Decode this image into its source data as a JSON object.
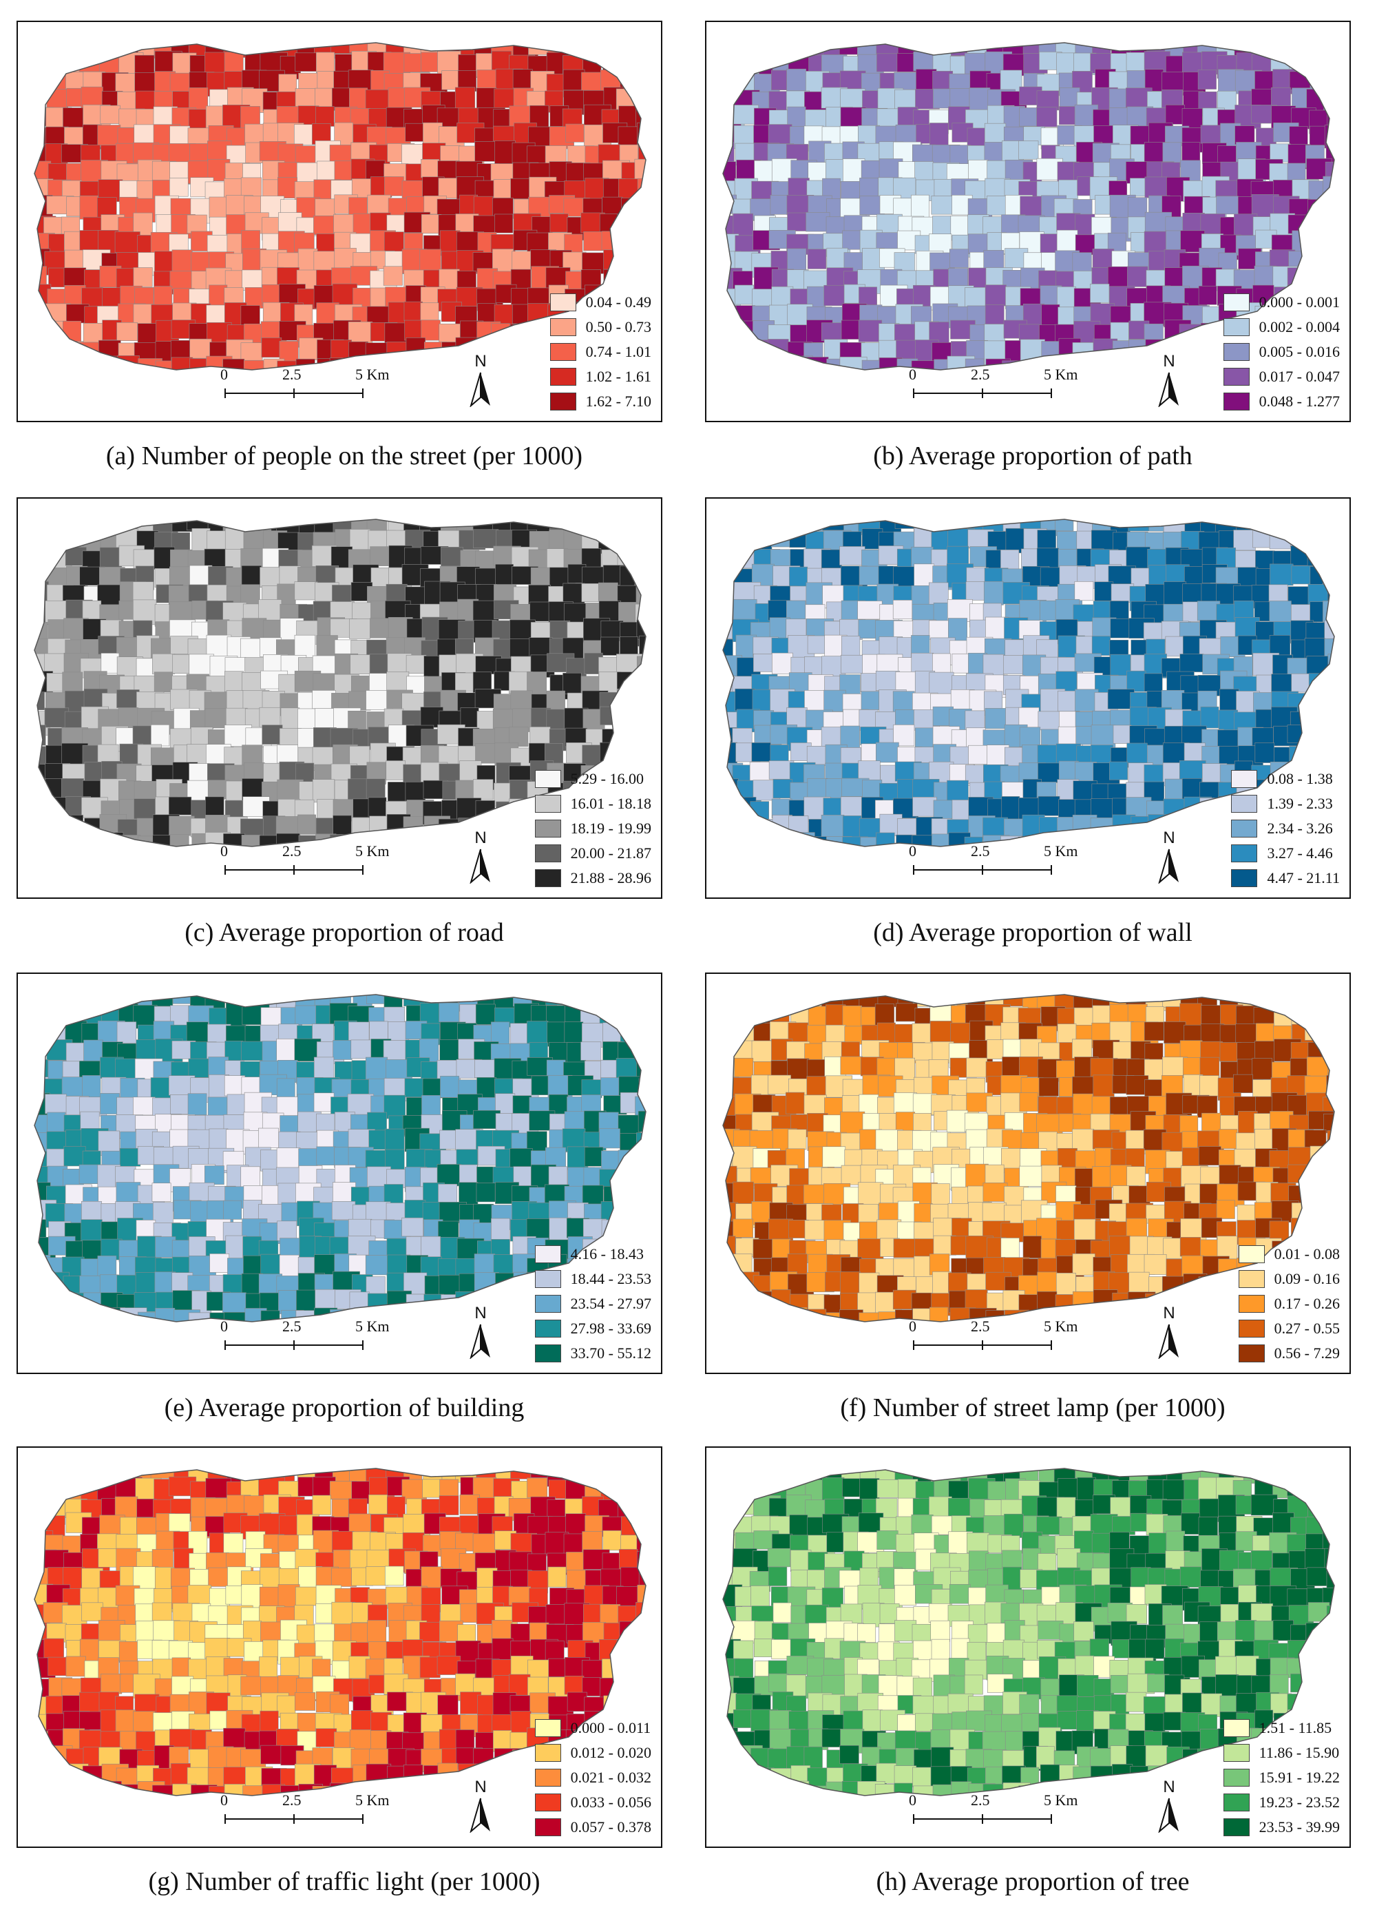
{
  "scale_bar": {
    "ticks": [
      "0",
      "2.5",
      "5 Km"
    ]
  },
  "north_arrow": {
    "label": "N",
    "icon": "north-arrow-icon"
  },
  "maps": [
    {
      "id": "a",
      "caption": "(a) Number of people on the street (per 1000)",
      "legend": [
        {
          "label": "0.04 - 0.49",
          "color": "#fde0d2"
        },
        {
          "label": "0.50 - 0.73",
          "color": "#fba487"
        },
        {
          "label": "0.74 - 1.01",
          "color": "#f4614a"
        },
        {
          "label": "1.02 - 1.61",
          "color": "#d62a22"
        },
        {
          "label": "1.62 - 7.10",
          "color": "#a50f15"
        }
      ]
    },
    {
      "id": "b",
      "caption": "(b) Average proportion of path",
      "legend": [
        {
          "label": "0.000 - 0.001",
          "color": "#edf8fb"
        },
        {
          "label": "0.002 - 0.004",
          "color": "#b3cde3"
        },
        {
          "label": "0.005 - 0.016",
          "color": "#8c96c6"
        },
        {
          "label": "0.017 - 0.047",
          "color": "#8856a7"
        },
        {
          "label": "0.048 - 1.277",
          "color": "#810f7c"
        }
      ]
    },
    {
      "id": "c",
      "caption": "(c) Average proportion of road",
      "legend": [
        {
          "label": "5.29 - 16.00",
          "color": "#f7f7f7"
        },
        {
          "label": "16.01 - 18.18",
          "color": "#cccccc"
        },
        {
          "label": "18.19 - 19.99",
          "color": "#969696"
        },
        {
          "label": "20.00 - 21.87",
          "color": "#636363"
        },
        {
          "label": "21.88 - 28.96",
          "color": "#252525"
        }
      ]
    },
    {
      "id": "d",
      "caption": "(d) Average proportion of wall",
      "legend": [
        {
          "label": "0.08 - 1.38",
          "color": "#f1eef6"
        },
        {
          "label": "1.39 - 2.33",
          "color": "#bdc9e1"
        },
        {
          "label": "2.34 - 3.26",
          "color": "#74a9cf"
        },
        {
          "label": "3.27 - 4.46",
          "color": "#2b8cbe"
        },
        {
          "label": "4.47 - 21.11",
          "color": "#045a8d"
        }
      ]
    },
    {
      "id": "e",
      "caption": "(e) Average proportion of building",
      "legend": [
        {
          "label": "4.16 - 18.43",
          "color": "#f2eef6"
        },
        {
          "label": "18.44 - 23.53",
          "color": "#bdc9e1"
        },
        {
          "label": "23.54 - 27.97",
          "color": "#67a9cf"
        },
        {
          "label": "27.98 - 33.69",
          "color": "#1c9099"
        },
        {
          "label": "33.70 - 55.12",
          "color": "#016c59"
        }
      ]
    },
    {
      "id": "f",
      "caption": "(f) Number of street lamp (per 1000)",
      "legend": [
        {
          "label": "0.01 - 0.08",
          "color": "#ffffd4"
        },
        {
          "label": "0.09 - 0.16",
          "color": "#fed98e"
        },
        {
          "label": "0.17 - 0.26",
          "color": "#fe9929"
        },
        {
          "label": "0.27 - 0.55",
          "color": "#d95f0e"
        },
        {
          "label": "0.56 - 7.29",
          "color": "#993404"
        }
      ]
    },
    {
      "id": "g",
      "caption": "(g) Number of traffic light (per 1000)",
      "legend": [
        {
          "label": "0.000 - 0.011",
          "color": "#ffffb2"
        },
        {
          "label": "0.012 - 0.020",
          "color": "#fecc5c"
        },
        {
          "label": "0.021 - 0.032",
          "color": "#fd8d3c"
        },
        {
          "label": "0.033 - 0.056",
          "color": "#f03b20"
        },
        {
          "label": "0.057 - 0.378",
          "color": "#bd0026"
        }
      ]
    },
    {
      "id": "h",
      "caption": "(h) Average proportion of tree",
      "legend": [
        {
          "label": "1.51 - 11.85",
          "color": "#ffffcc"
        },
        {
          "label": "11.86 - 15.90",
          "color": "#c2e699"
        },
        {
          "label": "15.91 - 19.22",
          "color": "#78c679"
        },
        {
          "label": "19.23 - 23.52",
          "color": "#31a354"
        },
        {
          "label": "23.53 - 39.99",
          "color": "#006837"
        }
      ]
    }
  ]
}
